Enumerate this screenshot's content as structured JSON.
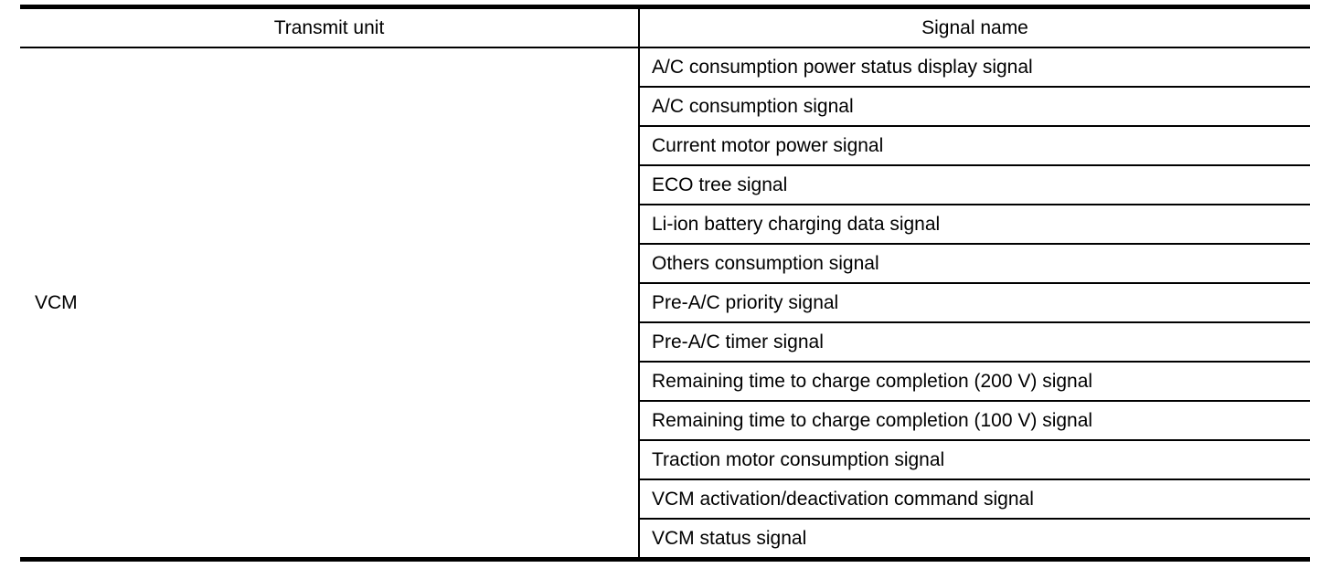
{
  "table": {
    "headers": {
      "transmit_unit": "Transmit unit",
      "signal_name": "Signal name"
    },
    "transmit_unit": "VCM",
    "signals": [
      "A/C consumption power status display signal",
      "A/C consumption signal",
      "Current motor power signal",
      "ECO tree signal",
      "Li-ion battery charging data signal",
      "Others consumption signal",
      "Pre-A/C priority signal",
      "Pre-A/C timer signal",
      "Remaining time to charge completion (200 V) signal",
      "Remaining time to charge completion (100 V) signal",
      "Traction motor consumption signal",
      "VCM activation/deactivation command signal",
      "VCM status signal"
    ]
  },
  "colors": {
    "border": "#000000",
    "background": "#ffffff",
    "text": "#000000"
  }
}
